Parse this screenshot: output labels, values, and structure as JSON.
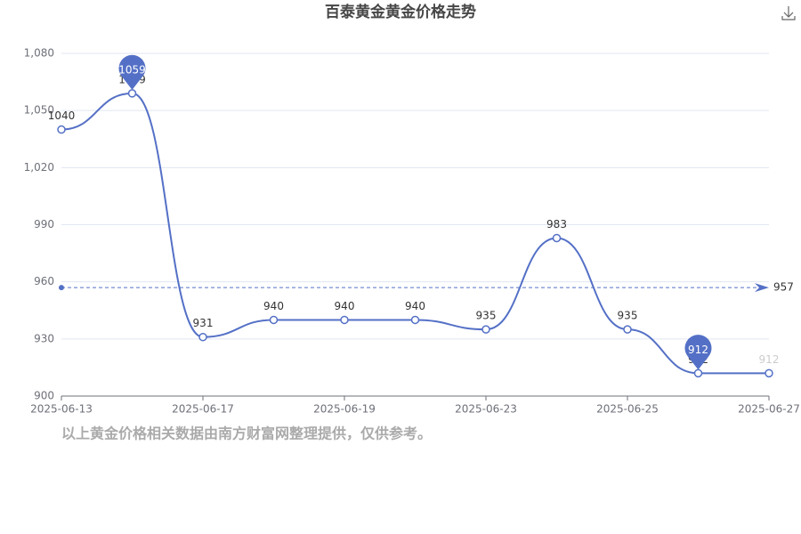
{
  "chart_data": {
    "type": "line",
    "title": "百泰黄金黄金价格走势",
    "categories": [
      "2025-06-13",
      null,
      "2025-06-17",
      null,
      "2025-06-19",
      null,
      "2025-06-23",
      null,
      "2025-06-25",
      null,
      "2025-06-27"
    ],
    "series": [
      {
        "name": "百泰黄金",
        "color": "#5470c6",
        "values": [
          1040,
          1059,
          931,
          940,
          940,
          940,
          935,
          983,
          935,
          912,
          912
        ]
      }
    ],
    "ylim": [
      900,
      1080
    ],
    "yticks": [
      900,
      930,
      960,
      990,
      {
        "value": 1020,
        "label": "1,020"
      },
      {
        "value": 1050,
        "label": "1,050"
      },
      {
        "value": 1080,
        "label": "1,080"
      }
    ],
    "grid": true,
    "average": 957,
    "footnote": "以上黄金价格相关数据由南方财富网整理提供，仅供参考。"
  }
}
